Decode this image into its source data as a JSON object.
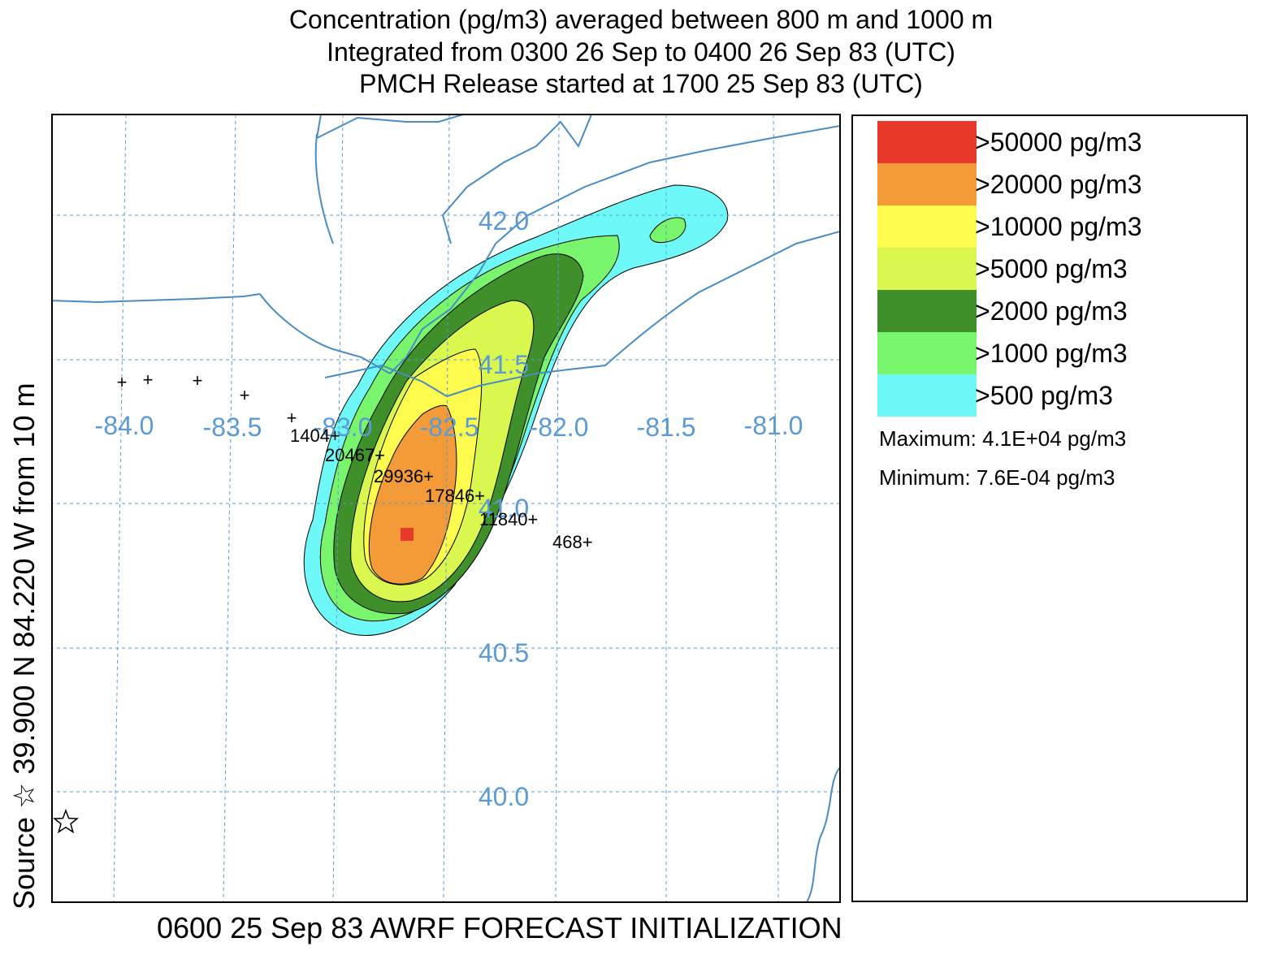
{
  "header": {
    "line1": "Concentration  (pg/m3) averaged between   800 m and  1000 m",
    "line2": "Integrated from 0300 26 Sep to 0400 26 Sep 83 (UTC)",
    "line3": "PMCH Release started at 1700 25 Sep 83 (UTC)"
  },
  "source_label": "Source ☆ 39.900  N  84.220  W    from    10 m",
  "footer": "0600 25 Sep 83 AWRF FORECAST INITIALIZATION",
  "map": {
    "lon_labels": [
      "-84.0",
      "-83.5",
      "-83.0",
      "-82.5",
      "-82.0",
      "-81.5",
      "-81.0"
    ],
    "lat_labels": [
      "42.0",
      "41.5",
      "41.0",
      "40.5",
      "40.0"
    ],
    "grid_color": "#5b9bd5",
    "boundary_color": "#4a8cc4",
    "max_marker_color": "#e8392a",
    "source_icon": "star-outline-icon",
    "sampler_markers": [
      {
        "label": ""
      },
      {
        "label": ""
      },
      {
        "label": ""
      },
      {
        "label": ""
      },
      {
        "label": ""
      },
      {
        "label": "1404+"
      },
      {
        "label": "20467+"
      },
      {
        "label": "29936+"
      },
      {
        "label": "17846+"
      },
      {
        "label": "11840+"
      },
      {
        "label": "468+"
      }
    ]
  },
  "legend": {
    "levels": [
      {
        "label": ">50000 pg/m3",
        "color": "#e8392a"
      },
      {
        "label": ">20000 pg/m3",
        "color": "#f29b38"
      },
      {
        "label": ">10000 pg/m3",
        "color": "#fdfb4d"
      },
      {
        "label": ">5000 pg/m3",
        "color": "#d9f74e"
      },
      {
        "label": ">2000 pg/m3",
        "color": "#3f8f2a"
      },
      {
        "label": ">1000 pg/m3",
        "color": "#78f56c"
      },
      {
        "label": ">500 pg/m3",
        "color": "#6ff8f8"
      }
    ],
    "maximum": "Maximum: 4.1E+04 pg/m3",
    "minimum": "Minimum: 7.6E-04 pg/m3"
  }
}
